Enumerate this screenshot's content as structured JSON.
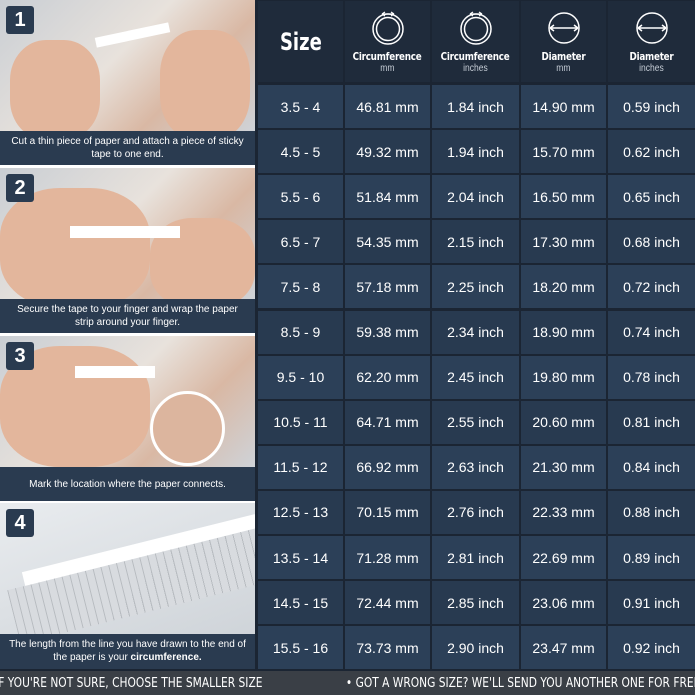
{
  "steps": [
    {
      "number": "1",
      "caption": "Cut a thin piece of paper and attach a piece of sticky tape to one end."
    },
    {
      "number": "2",
      "caption": "Secure the tape to your finger and wrap the paper strip around your finger."
    },
    {
      "number": "3",
      "caption": "Mark the location where the paper connects."
    },
    {
      "number": "4",
      "caption_pre": "The length from the line you have drawn to the end of the paper is your ",
      "caption_bold": "circumference."
    }
  ],
  "table": {
    "headers": [
      {
        "title": "Size",
        "unit": "",
        "icon": ""
      },
      {
        "title": "Circumference",
        "unit": "mm",
        "icon": "circumference-icon"
      },
      {
        "title": "Circumference",
        "unit": "inches",
        "icon": "circumference-icon"
      },
      {
        "title": "Diameter",
        "unit": "mm",
        "icon": "diameter-icon"
      },
      {
        "title": "Diameter",
        "unit": "inches",
        "icon": "diameter-icon"
      }
    ],
    "rows": [
      [
        "3.5 - 4",
        "46.81 mm",
        "1.84 inch",
        "14.90 mm",
        "0.59 inch"
      ],
      [
        "4.5 - 5",
        "49.32 mm",
        "1.94 inch",
        "15.70 mm",
        "0.62 inch"
      ],
      [
        "5.5 - 6",
        "51.84 mm",
        "2.04 inch",
        "16.50 mm",
        "0.65 inch"
      ],
      [
        "6.5 - 7",
        "54.35 mm",
        "2.15 inch",
        "17.30 mm",
        "0.68 inch"
      ],
      [
        "7.5 - 8",
        "57.18 mm",
        "2.25 inch",
        "18.20 mm",
        "0.72 inch"
      ],
      [
        "8.5 - 9",
        "59.38 mm",
        "2.34 inch",
        "18.90 mm",
        "0.74 inch"
      ],
      [
        "9.5 - 10",
        "62.20 mm",
        "2.45 inch",
        "19.80 mm",
        "0.78 inch"
      ],
      [
        "10.5 - 11",
        "64.71 mm",
        "2.55 inch",
        "20.60 mm",
        "0.81 inch"
      ],
      [
        "11.5 - 12",
        "66.92 mm",
        "2.63 inch",
        "21.30 mm",
        "0.84 inch"
      ],
      [
        "12.5 - 13",
        "70.15 mm",
        "2.76 inch",
        "22.33 mm",
        "0.88 inch"
      ],
      [
        "13.5 - 14",
        "71.28 mm",
        "2.81 inch",
        "22.69 mm",
        "0.89 inch"
      ],
      [
        "14.5 - 15",
        "72.44 mm",
        "2.85 inch",
        "23.06 mm",
        "0.91 inch"
      ],
      [
        "15.5 - 16",
        "73.73 mm",
        "2.90 inch",
        "23.47 mm",
        "0.92 inch"
      ]
    ]
  },
  "footer": {
    "note1": "• IF YOU'RE NOT SURE, CHOOSE THE SMALLER SIZE",
    "note2": "• GOT A WRONG SIZE? WE'LL SEND YOU ANOTHER ONE FOR FREE"
  },
  "colors": {
    "header": "#1f2b3b",
    "row_a": "#2c4058",
    "row_b": "#283a50",
    "panel": "#2a3b50"
  }
}
